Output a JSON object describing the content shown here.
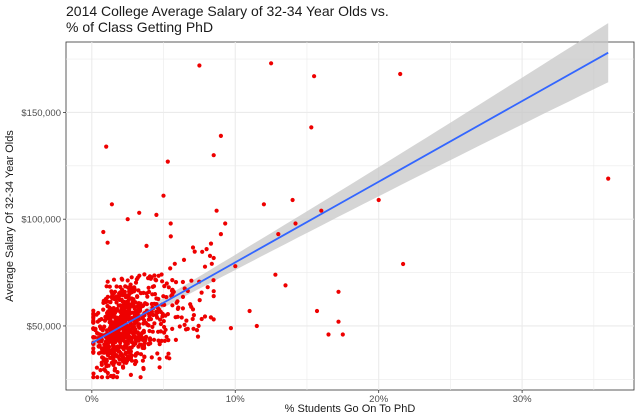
{
  "chart_data": {
    "type": "scatter",
    "title_lines": [
      "2014 College Average Salary of 32-34 Year Olds vs.",
      "% of Class Getting PhD"
    ],
    "xlabel": "% Students Go On To PhD",
    "ylabel": "Average Salary Of 32-34 Year Olds",
    "xlim": [
      -0.018,
      0.378
    ],
    "ylim": [
      20000,
      183000
    ],
    "x_ticks": [
      0,
      0.1,
      0.2,
      0.3
    ],
    "x_tick_labels": [
      "0%",
      "10%",
      "20%",
      "30%"
    ],
    "x_minor_ticks": [
      0.05,
      0.15,
      0.25,
      0.35
    ],
    "y_ticks": [
      50000,
      100000,
      150000
    ],
    "y_tick_labels": [
      "$50,000",
      "$100,000",
      "$150,000"
    ],
    "y_minor_ticks": [
      25000,
      75000,
      125000,
      175000
    ],
    "grid": true,
    "points_highlight": [
      [
        0.075,
        172000
      ],
      [
        0.125,
        173000
      ],
      [
        0.155,
        167000
      ],
      [
        0.215,
        168000
      ],
      [
        0.01,
        134000
      ],
      [
        0.09,
        139000
      ],
      [
        0.085,
        130000
      ],
      [
        0.053,
        127000
      ],
      [
        0.153,
        143000
      ],
      [
        0.36,
        119000
      ],
      [
        0.2,
        109000
      ],
      [
        0.16,
        104000
      ],
      [
        0.14,
        109000
      ],
      [
        0.12,
        107000
      ],
      [
        0.142,
        98000
      ],
      [
        0.13,
        93000
      ],
      [
        0.093,
        98000
      ],
      [
        0.09,
        93000
      ],
      [
        0.087,
        104000
      ],
      [
        0.08,
        86000
      ],
      [
        0.1,
        78000
      ],
      [
        0.128,
        74000
      ],
      [
        0.217,
        79000
      ],
      [
        0.135,
        69000
      ],
      [
        0.172,
        66000
      ],
      [
        0.157,
        57000
      ],
      [
        0.165,
        46000
      ],
      [
        0.175,
        46000
      ],
      [
        0.172,
        52000
      ],
      [
        0.11,
        57000
      ],
      [
        0.115,
        50000
      ],
      [
        0.097,
        49000
      ],
      [
        0.083,
        54000
      ],
      [
        0.074,
        45000
      ],
      [
        0.045,
        55000
      ],
      [
        0.06,
        58000
      ],
      [
        0.008,
        94000
      ],
      [
        0.011,
        89000
      ],
      [
        0.014,
        107000
      ],
      [
        0.025,
        100000
      ],
      [
        0.033,
        103000
      ],
      [
        0.05,
        111000
      ],
      [
        0.045,
        102000
      ],
      [
        0.055,
        98000
      ]
    ],
    "cloud": {
      "count": 780,
      "x_center": 0.016,
      "x_spread": 0.028,
      "x_min": 0.001,
      "x_max": 0.085,
      "y_base": 44000,
      "y_slope": 260000,
      "y_spread": 8500,
      "y_min": 26000,
      "y_max": 98000
    },
    "fit": {
      "x_start": 0.0,
      "x_end": 0.36,
      "y_start": 42000,
      "y_end": 178000,
      "x_mean": 0.03,
      "se_min": 1800,
      "se_scale": 22000
    },
    "colors": {
      "points": "#ee0000",
      "line": "#3366ff",
      "band": "#c7c7c7",
      "grid": "#ebebeb",
      "panel_border": "#333333"
    }
  }
}
